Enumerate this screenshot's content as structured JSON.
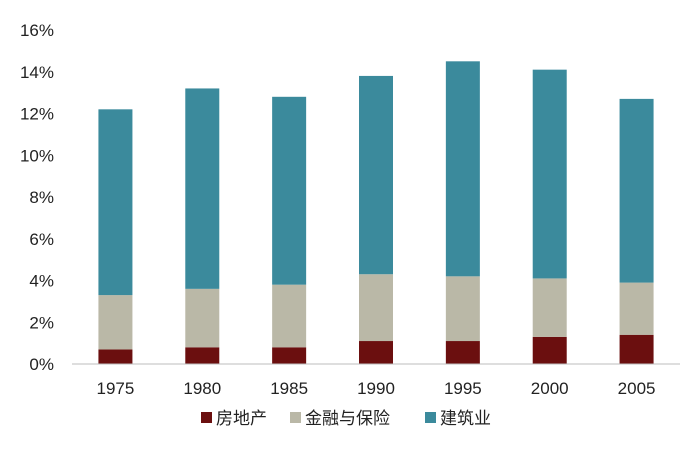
{
  "chart_data": {
    "type": "bar",
    "stacked": true,
    "categories": [
      "1975",
      "1980",
      "1985",
      "1990",
      "1995",
      "2000",
      "2005"
    ],
    "series": [
      {
        "name": "房地产",
        "color": "#6b0f0f",
        "values": [
          0.7,
          0.8,
          0.8,
          1.1,
          1.1,
          1.3,
          1.4
        ]
      },
      {
        "name": "金融与保险",
        "color": "#bab8a7",
        "values": [
          2.6,
          2.8,
          3.0,
          3.2,
          3.1,
          2.8,
          2.5
        ]
      },
      {
        "name": "建筑业",
        "color": "#3b8a9c",
        "values": [
          8.9,
          9.6,
          9.0,
          9.5,
          10.3,
          10.0,
          8.8
        ]
      }
    ],
    "y_ticks": [
      "0%",
      "2%",
      "4%",
      "6%",
      "8%",
      "10%",
      "12%",
      "14%",
      "16%"
    ],
    "ylim": [
      0,
      16
    ],
    "title": "",
    "xlabel": "",
    "ylabel": "",
    "grid": false,
    "legend_position": "bottom"
  }
}
